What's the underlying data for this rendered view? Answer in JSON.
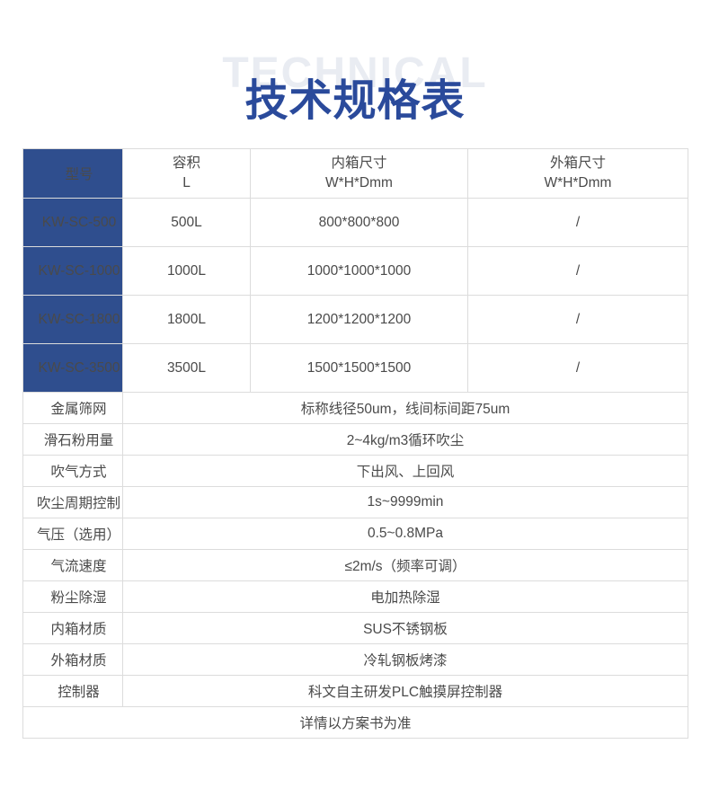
{
  "page": {
    "watermark": "TECHNICAL",
    "title": "技术规格表"
  },
  "colors": {
    "table_header_blue": "#2f4e8e",
    "title_blue": "#2a4a9b",
    "watermark_gray": "#e9ecf2",
    "border_gray": "#dcdcdc",
    "body_text_gray": "#4a4a4a"
  },
  "table": {
    "header": {
      "model": "型号",
      "capacity_line1": "容积",
      "capacity_line2": "L",
      "inner_line1": "内箱尺寸",
      "inner_line2": "W*H*Dmm",
      "outer_line1": "外箱尺寸",
      "outer_line2": "W*H*Dmm"
    },
    "model_rows": [
      {
        "model": "KW-SC-500",
        "capacity": "500L",
        "inner": "800*800*800",
        "outer": "/"
      },
      {
        "model": "KW-SC-1000",
        "capacity": "1000L",
        "inner": "1000*1000*1000",
        "outer": "/"
      },
      {
        "model": "KW-SC-1800",
        "capacity": "1800L",
        "inner": "1200*1200*1200",
        "outer": "/"
      },
      {
        "model": "KW-SC-3500",
        "capacity": "3500L",
        "inner": "1500*1500*1500",
        "outer": "/"
      }
    ],
    "spec_rows": [
      {
        "label": "金属筛网",
        "value": "标称线径50um，线间标间距75um"
      },
      {
        "label": "滑石粉用量",
        "value": "2~4kg/m3循环吹尘"
      },
      {
        "label": "吹气方式",
        "value": "下出风、上回风"
      },
      {
        "label": "吹尘周期控制",
        "value": "1s~9999min"
      },
      {
        "label": "气压（选用）",
        "value": "0.5~0.8MPa"
      },
      {
        "label": "气流速度",
        "value": "≤2m/s（频率可调）"
      },
      {
        "label": "粉尘除湿",
        "value": "电加热除湿"
      },
      {
        "label": "内箱材质",
        "value": "SUS不锈钢板"
      },
      {
        "label": "外箱材质",
        "value": "冷轧钢板烤漆"
      },
      {
        "label": "控制器",
        "value": "科文自主研发PLC触摸屏控制器"
      }
    ],
    "footer_note": "详情以方案书为准"
  }
}
